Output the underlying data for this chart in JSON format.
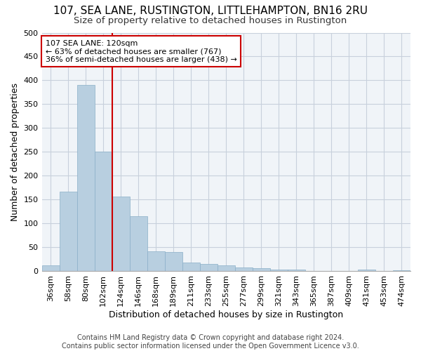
{
  "title": "107, SEA LANE, RUSTINGTON, LITTLEHAMPTON, BN16 2RU",
  "subtitle": "Size of property relative to detached houses in Rustington",
  "xlabel": "Distribution of detached houses by size in Rustington",
  "ylabel": "Number of detached properties",
  "bar_color": "#b8cfe0",
  "bar_edge_color": "#8aafc8",
  "grid_color": "#c8d0dc",
  "bg_color": "#f0f4f8",
  "vline_color": "#cc0000",
  "annotation_line1": "107 SEA LANE: 120sqm",
  "annotation_line2": "← 63% of detached houses are smaller (767)",
  "annotation_line3": "36% of semi-detached houses are larger (438) →",
  "annotation_box_color": "white",
  "annotation_box_edge": "#cc0000",
  "categories": [
    "36sqm",
    "58sqm",
    "80sqm",
    "102sqm",
    "124sqm",
    "146sqm",
    "168sqm",
    "189sqm",
    "211sqm",
    "233sqm",
    "255sqm",
    "277sqm",
    "299sqm",
    "321sqm",
    "343sqm",
    "365sqm",
    "387sqm",
    "409sqm",
    "431sqm",
    "453sqm",
    "474sqm"
  ],
  "values": [
    12,
    167,
    390,
    250,
    157,
    115,
    42,
    40,
    18,
    15,
    12,
    8,
    6,
    4,
    4,
    1,
    0,
    0,
    3,
    1,
    2
  ],
  "footer": "Contains HM Land Registry data © Crown copyright and database right 2024.\nContains public sector information licensed under the Open Government Licence v3.0.",
  "ylim": [
    0,
    500
  ],
  "vline_index": 4,
  "title_fontsize": 11,
  "subtitle_fontsize": 9.5,
  "axis_label_fontsize": 9,
  "tick_fontsize": 8,
  "annotation_fontsize": 8,
  "footer_fontsize": 7
}
